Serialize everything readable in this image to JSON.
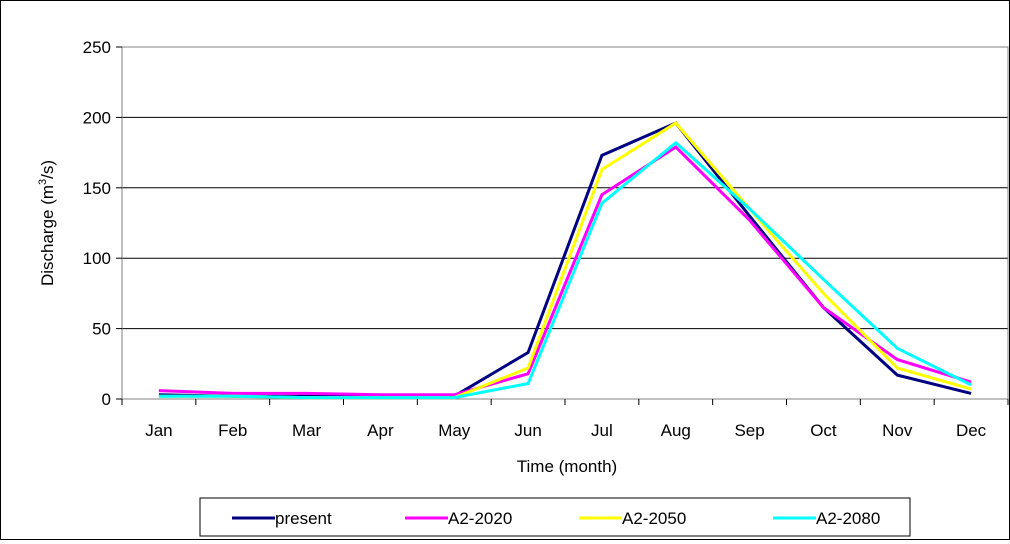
{
  "chart_data": {
    "type": "line",
    "xlabel": "Time (month)",
    "ylabel": {
      "prefix": "Discharge (m",
      "sup": "3",
      "suffix": "/s)"
    },
    "ylim": [
      0,
      250
    ],
    "yticks": [
      "0",
      "50",
      "100",
      "150",
      "200",
      "250"
    ],
    "categories": [
      "Jan",
      "Feb",
      "Mar",
      "Apr",
      "May",
      "Jun",
      "Jul",
      "Aug",
      "Sep",
      "Oct",
      "Nov",
      "Dec"
    ],
    "grid": "horizontal",
    "legend_position": "bottom",
    "series": [
      {
        "name": "present",
        "color": "#000080",
        "values": [
          3,
          2,
          2,
          2,
          2,
          33,
          173,
          196,
          130,
          65,
          17,
          4
        ]
      },
      {
        "name": "A2-2020",
        "color": "#FF00FF",
        "values": [
          6,
          4,
          4,
          3,
          3,
          18,
          145,
          179,
          127,
          65,
          28,
          12
        ]
      },
      {
        "name": "A2-2050",
        "color": "#FFFF00",
        "values": [
          2,
          2,
          1,
          1,
          1,
          22,
          163,
          196,
          135,
          75,
          22,
          7
        ]
      },
      {
        "name": "A2-2080",
        "color": "#00FFFF",
        "values": [
          2,
          2,
          1,
          1,
          1,
          11,
          139,
          182,
          135,
          85,
          36,
          10
        ]
      }
    ]
  }
}
